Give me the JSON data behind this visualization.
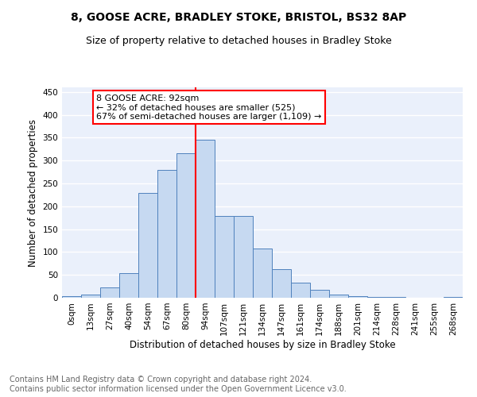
{
  "title1": "8, GOOSE ACRE, BRADLEY STOKE, BRISTOL, BS32 8AP",
  "title2": "Size of property relative to detached houses in Bradley Stoke",
  "xlabel": "Distribution of detached houses by size in Bradley Stoke",
  "ylabel": "Number of detached properties",
  "footnote": "Contains HM Land Registry data © Crown copyright and database right 2024.\nContains public sector information licensed under the Open Government Licence v3.0.",
  "bar_labels": [
    "0sqm",
    "13sqm",
    "27sqm",
    "40sqm",
    "54sqm",
    "67sqm",
    "80sqm",
    "94sqm",
    "107sqm",
    "121sqm",
    "134sqm",
    "147sqm",
    "161sqm",
    "174sqm",
    "188sqm",
    "201sqm",
    "214sqm",
    "228sqm",
    "241sqm",
    "255sqm",
    "268sqm"
  ],
  "bar_values": [
    3,
    7,
    22,
    54,
    230,
    280,
    316,
    345,
    178,
    178,
    107,
    63,
    33,
    17,
    7,
    3,
    1,
    1,
    0,
    0,
    2
  ],
  "bar_color": "#c6d9f1",
  "bar_edge_color": "#4f81bd",
  "vline_x": 7.0,
  "vline_color": "red",
  "annotation_text": "8 GOOSE ACRE: 92sqm\n← 32% of detached houses are smaller (525)\n67% of semi-detached houses are larger (1,109) →",
  "annotation_box_color": "white",
  "annotation_box_edge": "red",
  "ylim": [
    0,
    460
  ],
  "yticks": [
    0,
    50,
    100,
    150,
    200,
    250,
    300,
    350,
    400,
    450
  ],
  "bg_color": "#eaf0fb",
  "grid_color": "white",
  "title1_fontsize": 10,
  "title2_fontsize": 9,
  "xlabel_fontsize": 8.5,
  "ylabel_fontsize": 8.5,
  "footnote_fontsize": 7,
  "tick_fontsize": 7.5,
  "ann_fontsize": 8
}
